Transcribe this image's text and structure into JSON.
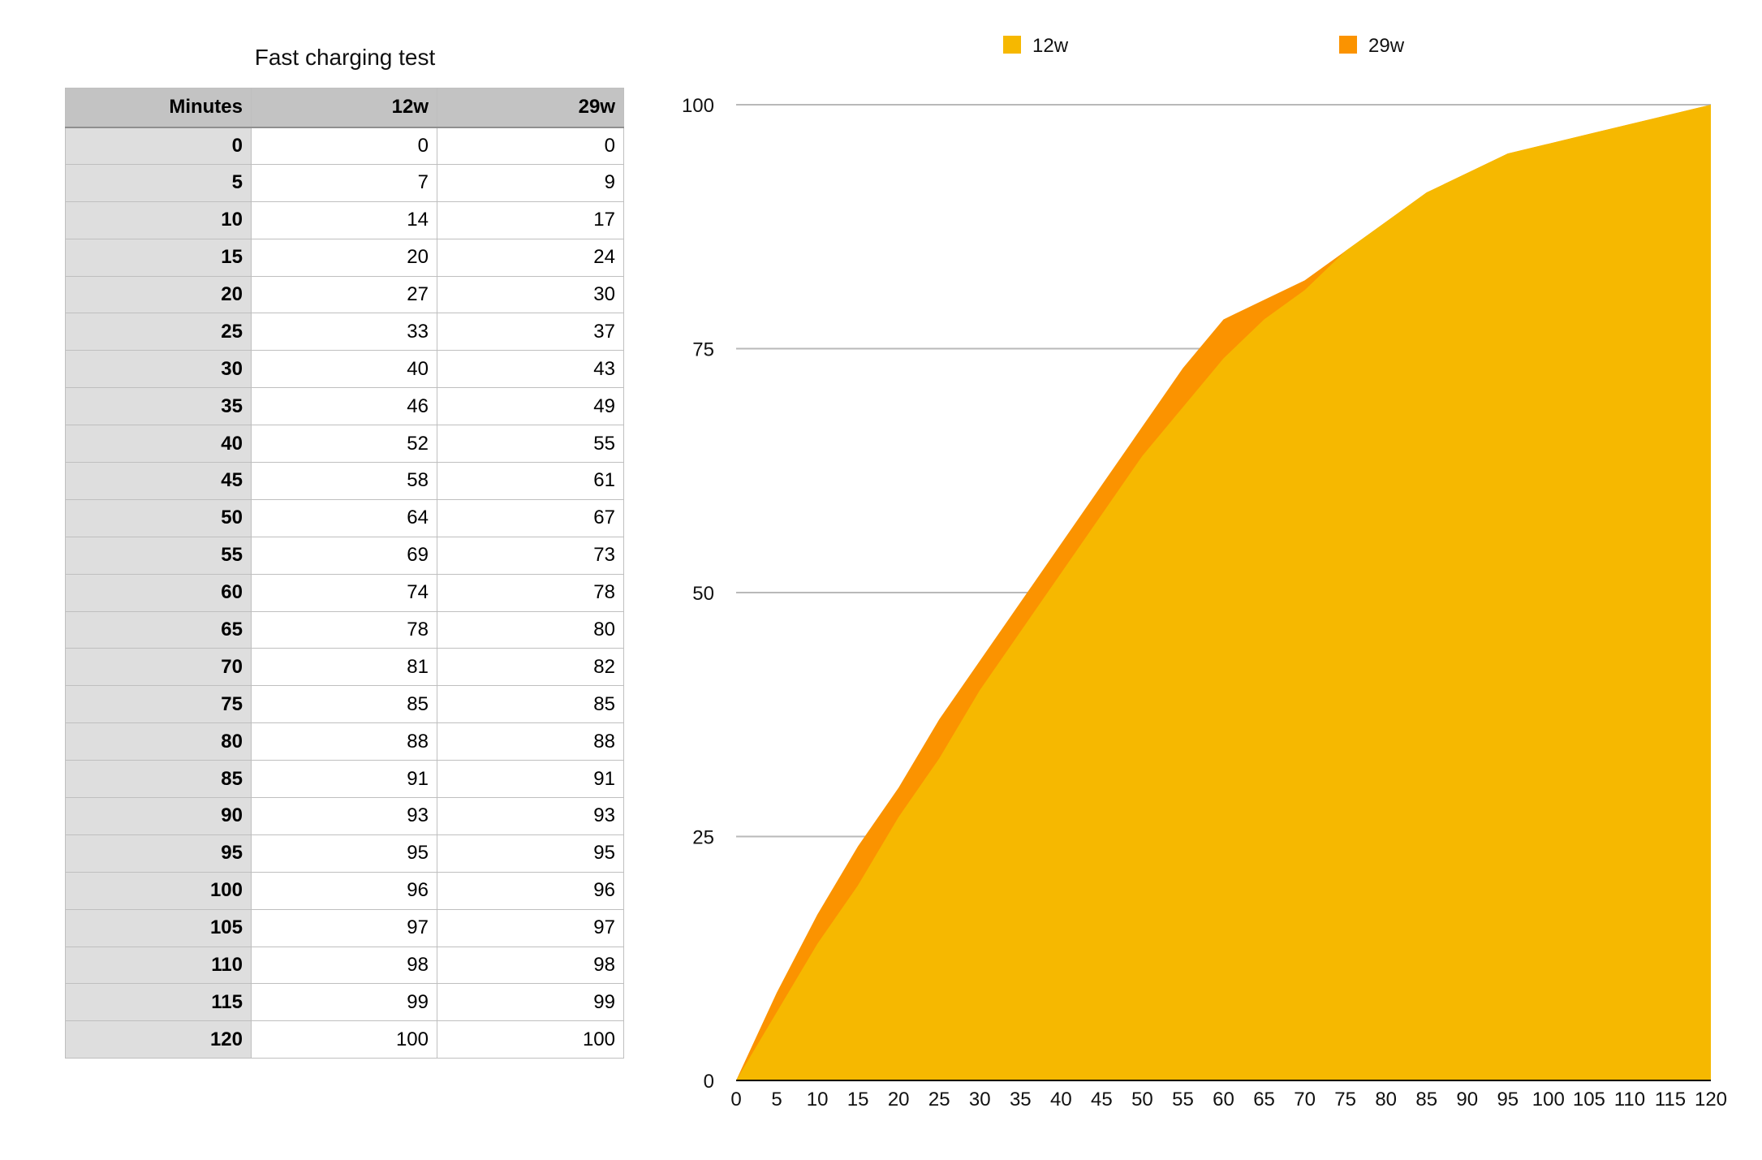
{
  "table": {
    "title": "Fast charging test",
    "headers": [
      "Minutes",
      "12w",
      "29w"
    ],
    "rows": [
      [
        "0",
        "0",
        "0"
      ],
      [
        "5",
        "7",
        "9"
      ],
      [
        "10",
        "14",
        "17"
      ],
      [
        "15",
        "20",
        "24"
      ],
      [
        "20",
        "27",
        "30"
      ],
      [
        "25",
        "33",
        "37"
      ],
      [
        "30",
        "40",
        "43"
      ],
      [
        "35",
        "46",
        "49"
      ],
      [
        "40",
        "52",
        "55"
      ],
      [
        "45",
        "58",
        "61"
      ],
      [
        "50",
        "64",
        "67"
      ],
      [
        "55",
        "69",
        "73"
      ],
      [
        "60",
        "74",
        "78"
      ],
      [
        "65",
        "78",
        "80"
      ],
      [
        "70",
        "81",
        "82"
      ],
      [
        "75",
        "85",
        "85"
      ],
      [
        "80",
        "88",
        "88"
      ],
      [
        "85",
        "91",
        "91"
      ],
      [
        "90",
        "93",
        "93"
      ],
      [
        "95",
        "95",
        "95"
      ],
      [
        "100",
        "96",
        "96"
      ],
      [
        "105",
        "97",
        "97"
      ],
      [
        "110",
        "98",
        "98"
      ],
      [
        "115",
        "99",
        "99"
      ],
      [
        "120",
        "100",
        "100"
      ]
    ]
  },
  "chart_data": {
    "type": "area",
    "title": "",
    "xlabel": "",
    "ylabel": "",
    "x": [
      0,
      5,
      10,
      15,
      20,
      25,
      30,
      35,
      40,
      45,
      50,
      55,
      60,
      65,
      70,
      75,
      80,
      85,
      90,
      95,
      100,
      105,
      110,
      115,
      120
    ],
    "xlim": [
      0,
      120
    ],
    "ylim": [
      0,
      100
    ],
    "yticks": [
      0,
      25,
      50,
      75,
      100
    ],
    "grid": "horizontal",
    "legend_position": "top",
    "series": [
      {
        "name": "12w",
        "color": "#F6B800",
        "values": [
          0,
          7,
          14,
          20,
          27,
          33,
          40,
          46,
          52,
          58,
          64,
          69,
          74,
          78,
          81,
          85,
          88,
          91,
          93,
          95,
          96,
          97,
          98,
          99,
          100
        ]
      },
      {
        "name": "29w",
        "color": "#FB9300",
        "values": [
          0,
          9,
          17,
          24,
          30,
          37,
          43,
          49,
          55,
          61,
          67,
          73,
          78,
          80,
          82,
          85,
          88,
          91,
          93,
          95,
          96,
          97,
          98,
          99,
          100
        ]
      }
    ]
  }
}
